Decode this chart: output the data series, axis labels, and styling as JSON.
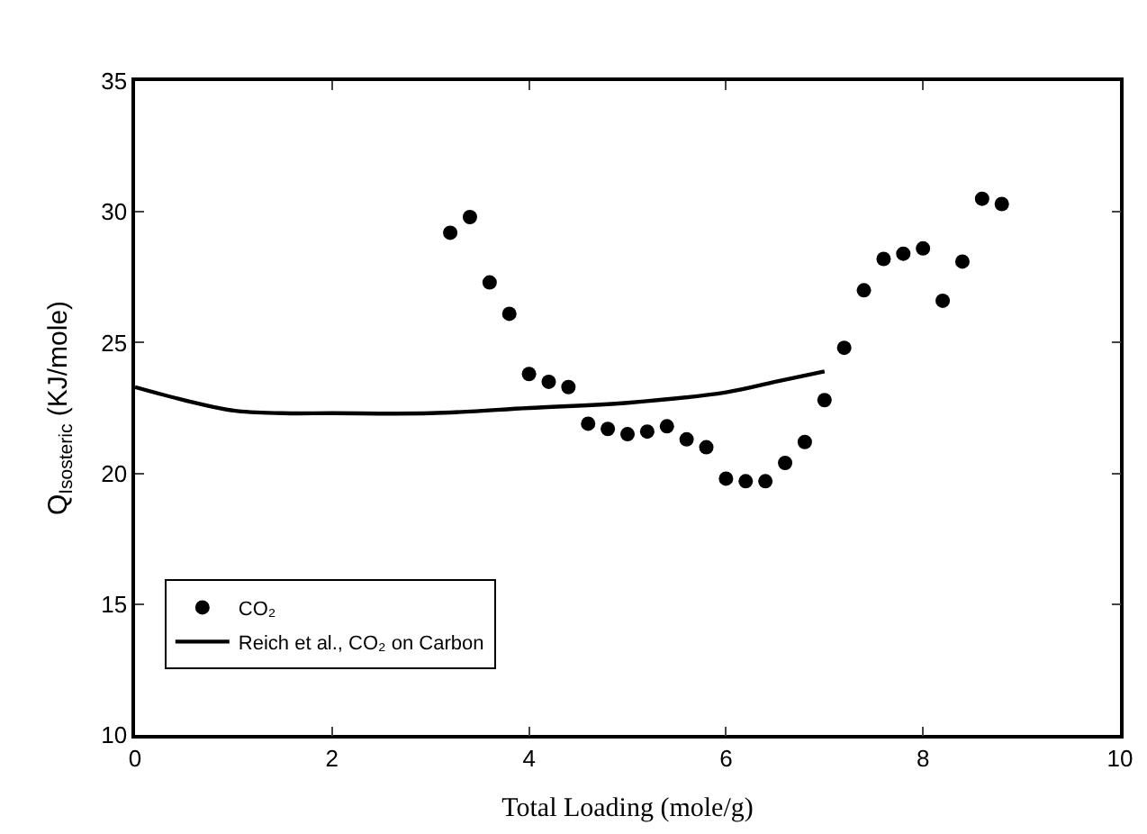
{
  "chart_data": {
    "type": "scatter",
    "xlabel": "Total Loading (mole/g)",
    "ylabel": "Q$_{Isosteric}$ (KJ/mole)",
    "xlim": [
      0,
      10
    ],
    "xticks": [
      0,
      2,
      4,
      6,
      8,
      10
    ],
    "ylim": [
      10,
      35
    ],
    "yticks": [
      10,
      15,
      20,
      25,
      30,
      35
    ],
    "legend": "bottom left",
    "series": [
      {
        "name": "CO₂",
        "marker": "circle",
        "color": "#000000",
        "x": [
          3.2,
          3.4,
          3.6,
          3.8,
          4.0,
          4.2,
          4.4,
          4.6,
          4.8,
          5.0,
          5.2,
          5.4,
          5.6,
          5.8,
          6.0,
          6.2,
          6.4,
          6.6,
          6.8,
          7.0,
          7.2,
          7.4,
          7.6,
          7.8,
          8.0,
          8.2,
          8.4,
          8.6,
          8.8
        ],
        "values": [
          29.2,
          29.8,
          27.3,
          26.1,
          23.8,
          23.5,
          23.3,
          21.9,
          21.7,
          21.5,
          21.6,
          21.8,
          21.3,
          21.0,
          19.8,
          19.7,
          19.7,
          20.4,
          21.2,
          22.8,
          24.8,
          27.0,
          28.2,
          28.4,
          28.6,
          26.6,
          28.1,
          30.5,
          30.3
        ]
      },
      {
        "name": "Reich et al., CO₂ on Carbon",
        "type": "line",
        "line_style": "solid",
        "color": "#000000",
        "x": [
          0,
          0.5,
          1,
          1.5,
          2,
          3,
          4,
          5,
          6,
          6.5,
          7
        ],
        "values": [
          23.3,
          22.8,
          22.4,
          22.3,
          22.3,
          22.3,
          22.5,
          22.7,
          23.1,
          23.5,
          23.9
        ]
      }
    ]
  }
}
